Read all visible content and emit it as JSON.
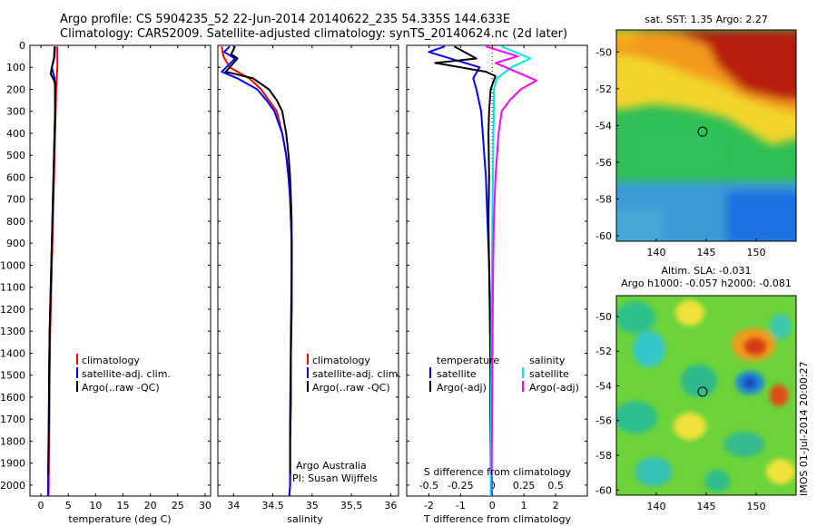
{
  "title": {
    "line1": "Argo profile: CS 5904235_52 22-Jun-2014 20140622_235 54.335S 144.633E",
    "line2": "Climatology: CARS2009. Satellite-adjusted climatology: synTS_20140624.nc (2d later)"
  },
  "colors": {
    "climatology": "#ff0000",
    "satellite": "#0000ff",
    "argo": "#000000",
    "sat_salinity": "#00e5e5",
    "argo_salinity_adj": "#ff00ff"
  },
  "depth_axis": {
    "range": [
      0,
      2050
    ],
    "ticks": [
      "0",
      "100",
      "200",
      "300",
      "400",
      "500",
      "600",
      "700",
      "800",
      "900",
      "1000",
      "1100",
      "1200",
      "1300",
      "1400",
      "1500",
      "1600",
      "1700",
      "1800",
      "1900",
      "2000"
    ]
  },
  "chart_data": [
    {
      "type": "line",
      "id": "temperature",
      "xlabel": "temperature (deg C)",
      "xlim": [
        -2,
        31
      ],
      "xticks": [
        "0",
        "5",
        "10",
        "15",
        "20",
        "25",
        "30"
      ],
      "legend": [
        "climatology",
        "satellite-adj. clim.",
        "Argo(..raw -QC)"
      ],
      "series": [
        {
          "name": "climatology",
          "x": [
            3.0,
            3.0,
            3.0,
            2.9,
            2.8,
            2.7,
            2.6,
            2.5,
            2.4,
            2.3,
            2.2,
            2.1,
            2.0,
            1.9,
            1.8,
            1.7,
            1.6,
            1.55,
            1.5,
            1.45,
            1.4
          ],
          "y": [
            5,
            50,
            100,
            150,
            200,
            300,
            400,
            500,
            600,
            700,
            800,
            900,
            1000,
            1100,
            1200,
            1300,
            1500,
            1700,
            1800,
            1900,
            2050
          ]
        },
        {
          "name": "satellite-adj. clim.",
          "x": [
            2.6,
            2.5,
            2.0,
            2.5,
            2.6,
            2.6,
            2.5,
            2.4,
            2.3,
            2.2,
            2.1,
            2.0,
            1.9,
            1.8,
            1.7,
            1.6,
            1.5,
            1.45,
            1.4,
            1.35,
            1.3
          ],
          "y": [
            5,
            50,
            100,
            150,
            200,
            300,
            400,
            500,
            600,
            700,
            800,
            900,
            1000,
            1100,
            1200,
            1300,
            1500,
            1700,
            1800,
            1900,
            2050
          ]
        },
        {
          "name": "Argo(..raw -QC)",
          "x": [
            2.5,
            2.4,
            2.0,
            1.8,
            2.6,
            2.6,
            2.5,
            2.4,
            2.3,
            2.2,
            2.1,
            2.0,
            1.9,
            1.8,
            1.7,
            1.6,
            1.5,
            1.45,
            1.4,
            1.35
          ],
          "y": [
            5,
            60,
            100,
            130,
            170,
            300,
            400,
            500,
            600,
            700,
            800,
            900,
            1000,
            1100,
            1200,
            1300,
            1500,
            1700,
            1800,
            1950
          ]
        }
      ]
    },
    {
      "type": "line",
      "id": "salinity",
      "xlabel": "salinity",
      "xlim": [
        33.8,
        36.1
      ],
      "xticks": [
        "34",
        "34.5",
        "35",
        "35.5",
        "36"
      ],
      "legend": [
        "climatology",
        "satellite-adj. clim.",
        "Argo(..raw -QC)"
      ],
      "series": [
        {
          "name": "climatology",
          "x": [
            33.85,
            33.87,
            33.95,
            34.05,
            34.2,
            34.35,
            34.45,
            34.55,
            34.62,
            34.67,
            34.7,
            34.72,
            34.73,
            34.74,
            34.74,
            34.74,
            34.73,
            34.73,
            34.72,
            34.72,
            34.71
          ],
          "y": [
            5,
            50,
            100,
            120,
            150,
            200,
            250,
            300,
            400,
            500,
            600,
            700,
            800,
            900,
            1000,
            1200,
            1400,
            1600,
            1800,
            2000,
            2050
          ]
        },
        {
          "name": "satellite-adj. clim.",
          "x": [
            33.95,
            33.88,
            34.02,
            33.85,
            34.05,
            34.3,
            34.42,
            34.52,
            34.62,
            34.67,
            34.7,
            34.72,
            34.73,
            34.74,
            34.74,
            34.74,
            34.73,
            34.73,
            34.72,
            34.72,
            34.71
          ],
          "y": [
            5,
            30,
            60,
            120,
            150,
            200,
            250,
            300,
            400,
            500,
            600,
            700,
            800,
            900,
            1000,
            1200,
            1400,
            1600,
            1800,
            2000,
            2050
          ]
        },
        {
          "name": "Argo(..raw -QC)",
          "x": [
            34.02,
            33.97,
            34.05,
            33.9,
            34.25,
            34.45,
            34.55,
            34.62,
            34.67,
            34.7,
            34.72,
            34.73,
            34.74,
            34.74,
            34.74,
            34.73,
            34.72,
            34.72
          ],
          "y": [
            5,
            40,
            60,
            120,
            150,
            200,
            250,
            300,
            400,
            500,
            600,
            700,
            800,
            900,
            1000,
            1300,
            1700,
            1950
          ]
        }
      ]
    },
    {
      "type": "line",
      "id": "difference",
      "xlabel": "T difference from climatology",
      "xlabel_top": "S difference from climatology",
      "xlim": [
        -2.7,
        3.0
      ],
      "xticks": [
        "-2",
        "-1",
        "0",
        "1",
        "2"
      ],
      "s_ticks": [
        "-0.5",
        "-0.25",
        "0",
        "0.25",
        "0.5"
      ],
      "s_scale": 4,
      "legend_headers": [
        "temperature",
        "salinity"
      ],
      "legend": [
        "satellite",
        "Argo(-adj)",
        "satellite",
        "Argo(-adj)"
      ],
      "series": [
        {
          "name": "satellite",
          "x": [
            -1.5,
            -2.0,
            -0.4,
            -0.6,
            -0.5,
            -0.35,
            -0.3,
            -0.25,
            -0.2,
            -0.15,
            -0.1,
            -0.07,
            -0.05,
            -0.03,
            -0.02
          ],
          "y": [
            5,
            30,
            100,
            150,
            200,
            300,
            400,
            500,
            600,
            800,
            1000,
            1200,
            1500,
            1800,
            2050
          ]
        },
        {
          "name": "Argo(-adj)",
          "x": [
            -1.2,
            -0.5,
            -1.8,
            -0.2,
            0.1,
            -0.05,
            -0.1,
            -0.12,
            -0.1,
            -0.12,
            -0.1,
            -0.08,
            -0.06,
            -0.06,
            -0.05,
            -0.05
          ],
          "y": [
            5,
            60,
            80,
            120,
            140,
            200,
            300,
            400,
            600,
            800,
            1000,
            1200,
            1500,
            1700,
            1900,
            1950
          ]
        },
        {
          "name": "satellite",
          "x": [
            0.3,
            1.2,
            0.6,
            0.15,
            0.05,
            0.05,
            0.03,
            0.0,
            -0.02,
            -0.04,
            -0.05
          ],
          "y": [
            5,
            60,
            100,
            150,
            200,
            300,
            500,
            800,
            1200,
            1700,
            2050
          ]
        },
        {
          "name": "Argo(-adj)",
          "x": [
            -0.2,
            0.8,
            0.1,
            1.4,
            0.9,
            0.55,
            0.3,
            0.2,
            0.1,
            0.05,
            0.02,
            0.0,
            -0.02
          ],
          "y": [
            5,
            50,
            80,
            160,
            200,
            250,
            300,
            400,
            600,
            800,
            1100,
            1500,
            1950
          ]
        }
      ]
    }
  ],
  "panel_text": {
    "argo_australia": "Argo Australia",
    "pi": "PI: Susan Wijffels"
  },
  "maps": {
    "sst": {
      "title": "sat. SST: 1.35 Argo: 2.27",
      "yticks": [
        "-50",
        "-52",
        "-54",
        "-56",
        "-58",
        "-60"
      ],
      "xticks": [
        "140",
        "145",
        "150"
      ],
      "marker": {
        "lon": 144.633,
        "lat": -54.335
      },
      "lon_range": [
        136,
        154
      ],
      "lat_range": [
        -60.3,
        -48.8
      ]
    },
    "sla": {
      "title1": "Altim. SLA: -0.031",
      "title2": "Argo h1000: -0.057 h2000: -0.081",
      "yticks": [
        "-50",
        "-52",
        "-54",
        "-56",
        "-58",
        "-60"
      ],
      "xticks": [
        "140",
        "145",
        "150"
      ],
      "marker": {
        "lon": 144.633,
        "lat": -54.335
      },
      "lon_range": [
        136,
        154
      ],
      "lat_range": [
        -60.3,
        -48.8
      ],
      "credit": "IMOS 01-Jul-2014 20:00:27"
    }
  }
}
